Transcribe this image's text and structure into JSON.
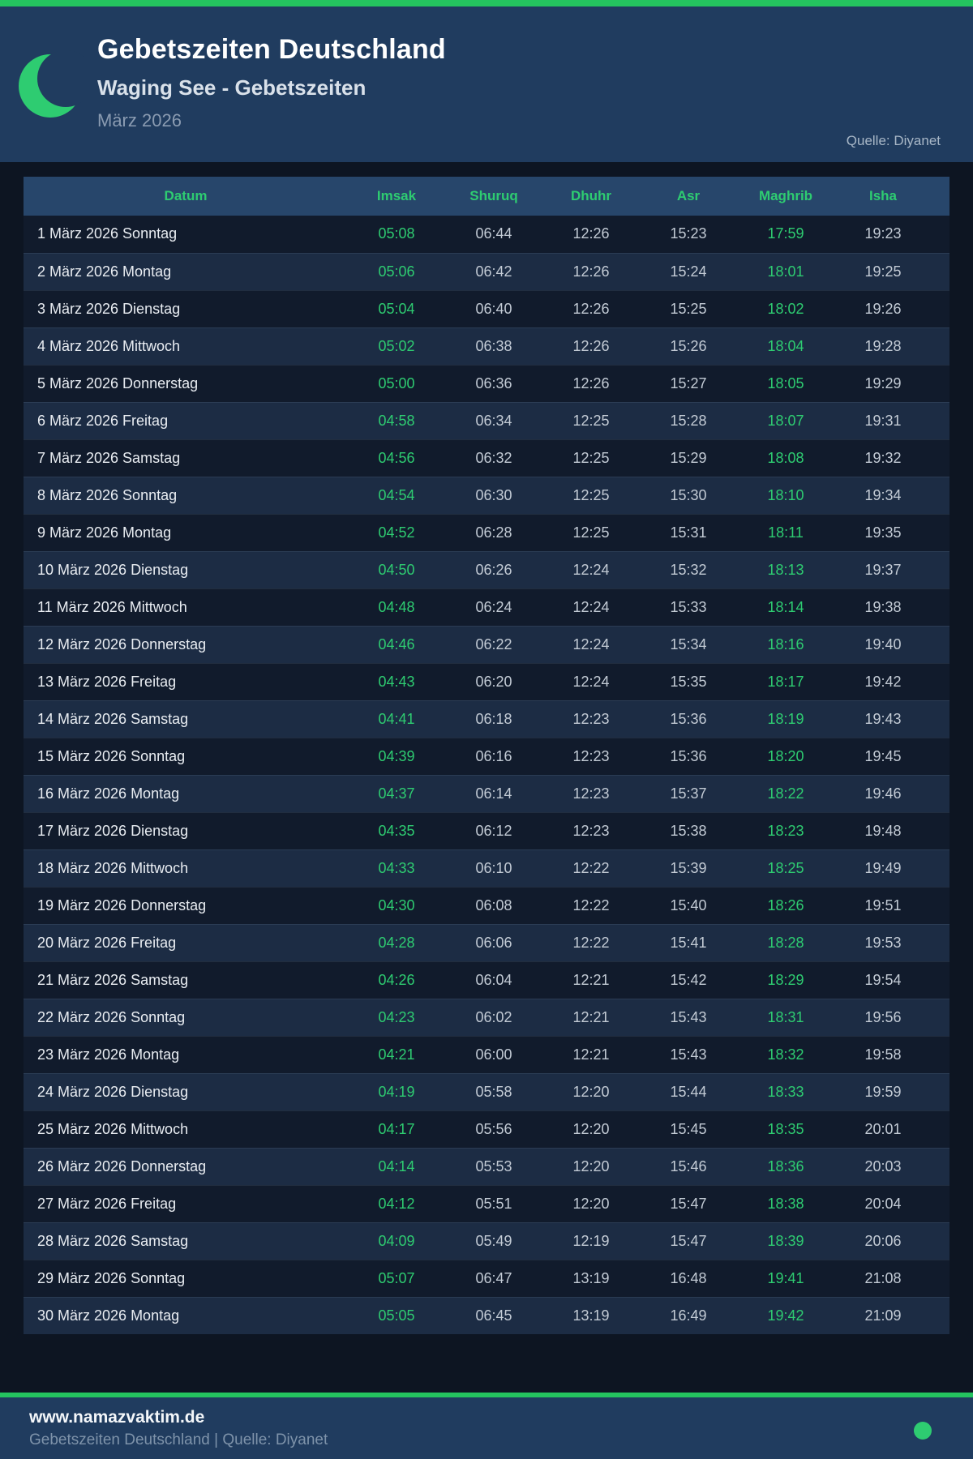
{
  "header": {
    "title": "Gebetszeiten Deutschland",
    "subtitle": "Waging See - Gebetszeiten",
    "period": "März 2026",
    "source": "Quelle: Diyanet"
  },
  "table": {
    "columns": [
      "Datum",
      "Imsak",
      "Shuruq",
      "Dhuhr",
      "Asr",
      "Maghrib",
      "Isha"
    ],
    "highlighted_columns": [
      "Imsak",
      "Maghrib"
    ],
    "rows": [
      {
        "datum": "1 März 2026 Sonntag",
        "times": [
          "05:08",
          "06:44",
          "12:26",
          "15:23",
          "17:59",
          "19:23"
        ]
      },
      {
        "datum": "2 März 2026 Montag",
        "times": [
          "05:06",
          "06:42",
          "12:26",
          "15:24",
          "18:01",
          "19:25"
        ]
      },
      {
        "datum": "3 März 2026 Dienstag",
        "times": [
          "05:04",
          "06:40",
          "12:26",
          "15:25",
          "18:02",
          "19:26"
        ]
      },
      {
        "datum": "4 März 2026 Mittwoch",
        "times": [
          "05:02",
          "06:38",
          "12:26",
          "15:26",
          "18:04",
          "19:28"
        ]
      },
      {
        "datum": "5 März 2026 Donnerstag",
        "times": [
          "05:00",
          "06:36",
          "12:26",
          "15:27",
          "18:05",
          "19:29"
        ]
      },
      {
        "datum": "6 März 2026 Freitag",
        "times": [
          "04:58",
          "06:34",
          "12:25",
          "15:28",
          "18:07",
          "19:31"
        ]
      },
      {
        "datum": "7 März 2026 Samstag",
        "times": [
          "04:56",
          "06:32",
          "12:25",
          "15:29",
          "18:08",
          "19:32"
        ]
      },
      {
        "datum": "8 März 2026 Sonntag",
        "times": [
          "04:54",
          "06:30",
          "12:25",
          "15:30",
          "18:10",
          "19:34"
        ]
      },
      {
        "datum": "9 März 2026 Montag",
        "times": [
          "04:52",
          "06:28",
          "12:25",
          "15:31",
          "18:11",
          "19:35"
        ]
      },
      {
        "datum": "10 März 2026 Dienstag",
        "times": [
          "04:50",
          "06:26",
          "12:24",
          "15:32",
          "18:13",
          "19:37"
        ]
      },
      {
        "datum": "11 März 2026 Mittwoch",
        "times": [
          "04:48",
          "06:24",
          "12:24",
          "15:33",
          "18:14",
          "19:38"
        ]
      },
      {
        "datum": "12 März 2026 Donnerstag",
        "times": [
          "04:46",
          "06:22",
          "12:24",
          "15:34",
          "18:16",
          "19:40"
        ]
      },
      {
        "datum": "13 März 2026 Freitag",
        "times": [
          "04:43",
          "06:20",
          "12:24",
          "15:35",
          "18:17",
          "19:42"
        ]
      },
      {
        "datum": "14 März 2026 Samstag",
        "times": [
          "04:41",
          "06:18",
          "12:23",
          "15:36",
          "18:19",
          "19:43"
        ]
      },
      {
        "datum": "15 März 2026 Sonntag",
        "times": [
          "04:39",
          "06:16",
          "12:23",
          "15:36",
          "18:20",
          "19:45"
        ]
      },
      {
        "datum": "16 März 2026 Montag",
        "times": [
          "04:37",
          "06:14",
          "12:23",
          "15:37",
          "18:22",
          "19:46"
        ]
      },
      {
        "datum": "17 März 2026 Dienstag",
        "times": [
          "04:35",
          "06:12",
          "12:23",
          "15:38",
          "18:23",
          "19:48"
        ]
      },
      {
        "datum": "18 März 2026 Mittwoch",
        "times": [
          "04:33",
          "06:10",
          "12:22",
          "15:39",
          "18:25",
          "19:49"
        ]
      },
      {
        "datum": "19 März 2026 Donnerstag",
        "times": [
          "04:30",
          "06:08",
          "12:22",
          "15:40",
          "18:26",
          "19:51"
        ]
      },
      {
        "datum": "20 März 2026 Freitag",
        "times": [
          "04:28",
          "06:06",
          "12:22",
          "15:41",
          "18:28",
          "19:53"
        ]
      },
      {
        "datum": "21 März 2026 Samstag",
        "times": [
          "04:26",
          "06:04",
          "12:21",
          "15:42",
          "18:29",
          "19:54"
        ]
      },
      {
        "datum": "22 März 2026 Sonntag",
        "times": [
          "04:23",
          "06:02",
          "12:21",
          "15:43",
          "18:31",
          "19:56"
        ]
      },
      {
        "datum": "23 März 2026 Montag",
        "times": [
          "04:21",
          "06:00",
          "12:21",
          "15:43",
          "18:32",
          "19:58"
        ]
      },
      {
        "datum": "24 März 2026 Dienstag",
        "times": [
          "04:19",
          "05:58",
          "12:20",
          "15:44",
          "18:33",
          "19:59"
        ]
      },
      {
        "datum": "25 März 2026 Mittwoch",
        "times": [
          "04:17",
          "05:56",
          "12:20",
          "15:45",
          "18:35",
          "20:01"
        ]
      },
      {
        "datum": "26 März 2026 Donnerstag",
        "times": [
          "04:14",
          "05:53",
          "12:20",
          "15:46",
          "18:36",
          "20:03"
        ]
      },
      {
        "datum": "27 März 2026 Freitag",
        "times": [
          "04:12",
          "05:51",
          "12:20",
          "15:47",
          "18:38",
          "20:04"
        ]
      },
      {
        "datum": "28 März 2026 Samstag",
        "times": [
          "04:09",
          "05:49",
          "12:19",
          "15:47",
          "18:39",
          "20:06"
        ]
      },
      {
        "datum": "29 März 2026 Sonntag",
        "times": [
          "05:07",
          "06:47",
          "13:19",
          "16:48",
          "19:41",
          "21:08"
        ]
      },
      {
        "datum": "30 März 2026 Montag",
        "times": [
          "05:05",
          "06:45",
          "13:19",
          "16:49",
          "19:42",
          "21:09"
        ]
      }
    ]
  },
  "footer": {
    "website": "www.namazvaktim.de",
    "tagline": "Gebetszeiten Deutschland | Quelle: Diyanet"
  },
  "colors": {
    "accent_green": "#2ecc71",
    "bar_green": "#24c45f",
    "header_navy": "#203c5f",
    "page_bg": "#0d1522",
    "table_header_bg": "#27466b",
    "row_odd": "#111b2c",
    "row_even": "#1c2c44",
    "time_grey": "#c3cbd5",
    "date_white": "#e9edf2"
  }
}
